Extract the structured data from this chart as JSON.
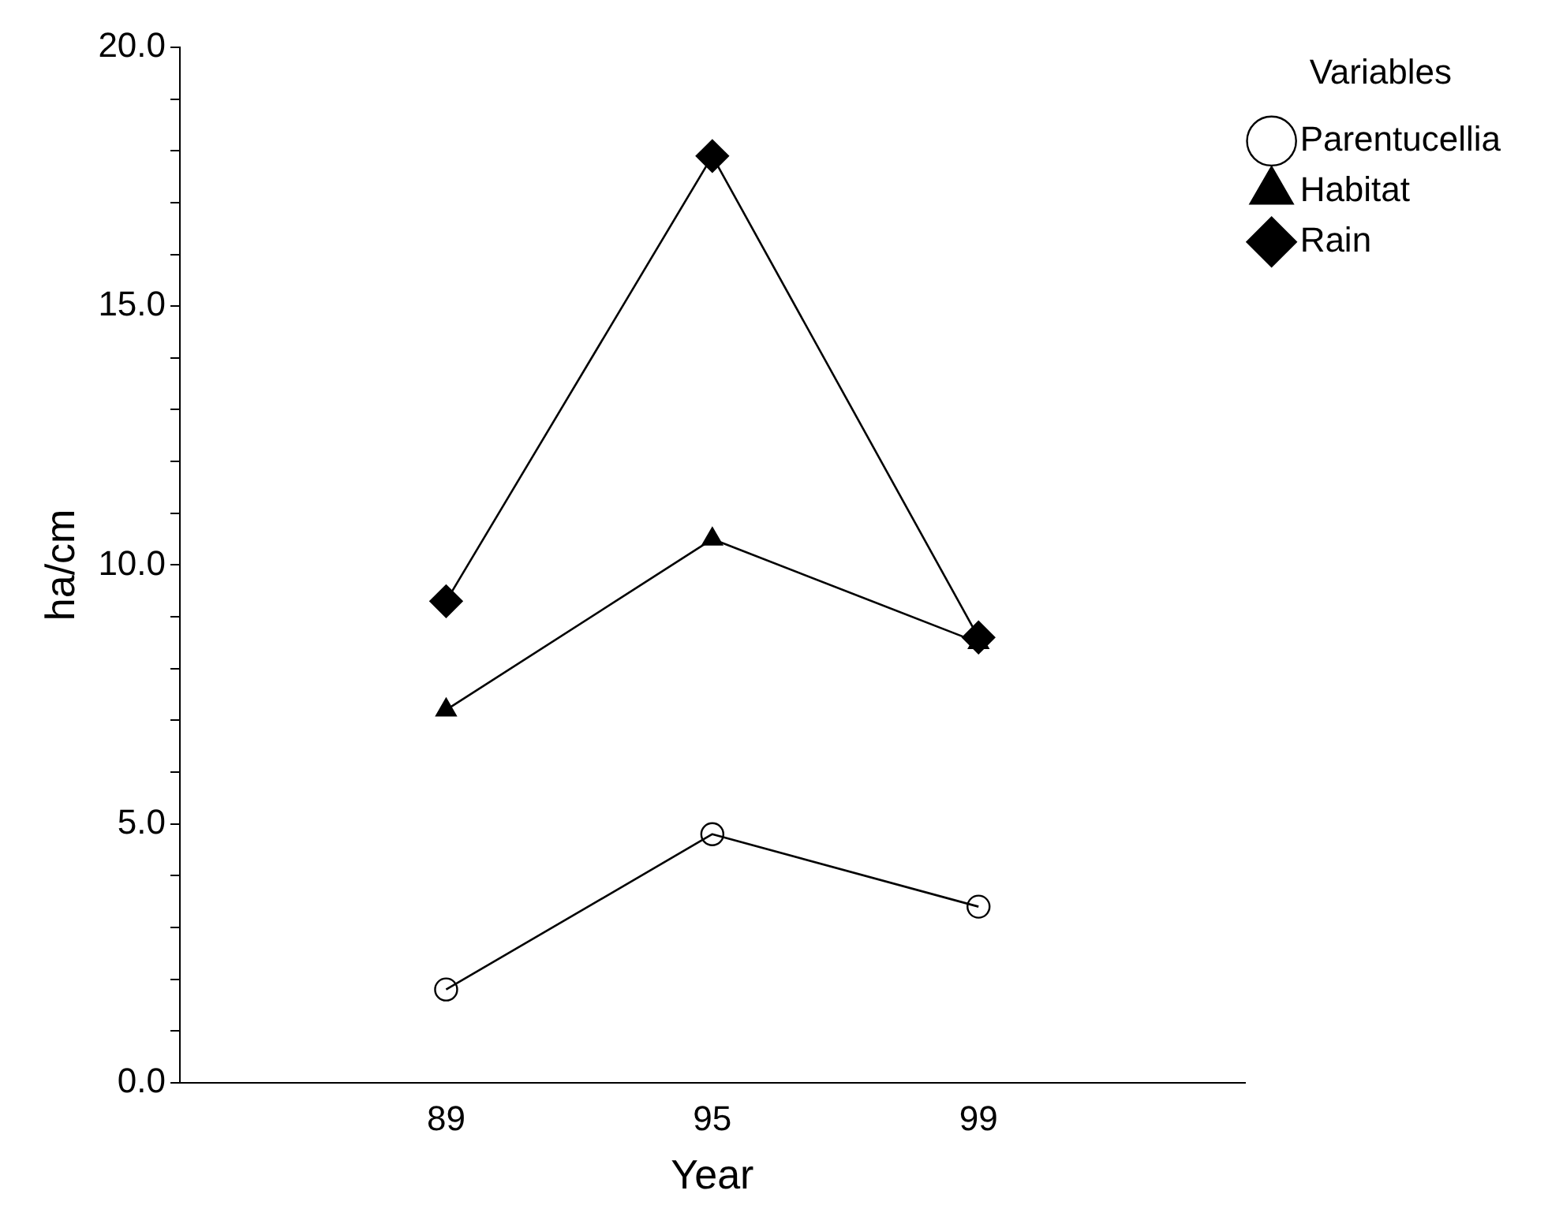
{
  "chart_data": {
    "type": "line",
    "xlabel": "Year",
    "ylabel": "ha/cm",
    "legend_title": "Variables",
    "legend": "top right",
    "categories": [
      "89",
      "95",
      "99"
    ],
    "series": [
      {
        "name": "Parentucellia",
        "color": "#000000",
        "marker": "circle",
        "values": [
          1.8,
          4.8,
          3.4
        ]
      },
      {
        "name": "Habitat",
        "color": "#000000",
        "marker": "triangle",
        "values": [
          7.2,
          10.5,
          8.5
        ]
      },
      {
        "name": "Rain",
        "color": "#000000",
        "marker": "diamond",
        "values": [
          9.3,
          17.9,
          8.6
        ]
      }
    ],
    "ylim": [
      0,
      20
    ],
    "yticks": [
      {
        "value": 0,
        "label": "0.0"
      },
      {
        "value": 1,
        "label": null
      },
      {
        "value": 2,
        "label": null
      },
      {
        "value": 3,
        "label": null
      },
      {
        "value": 4,
        "label": null
      },
      {
        "value": 5,
        "label": "5.0"
      },
      {
        "value": 6,
        "label": null
      },
      {
        "value": 7,
        "label": null
      },
      {
        "value": 8,
        "label": null
      },
      {
        "value": 9,
        "label": null
      },
      {
        "value": 10,
        "label": "10.0"
      },
      {
        "value": 11,
        "label": null
      },
      {
        "value": 12,
        "label": null
      },
      {
        "value": 13,
        "label": null
      },
      {
        "value": 14,
        "label": null
      },
      {
        "value": 15,
        "label": "15.0"
      },
      {
        "value": 16,
        "label": null
      },
      {
        "value": 17,
        "label": null
      },
      {
        "value": 18,
        "label": null
      },
      {
        "value": 19,
        "label": null
      },
      {
        "value": 20,
        "label": "20.0"
      }
    ],
    "grid": false
  }
}
